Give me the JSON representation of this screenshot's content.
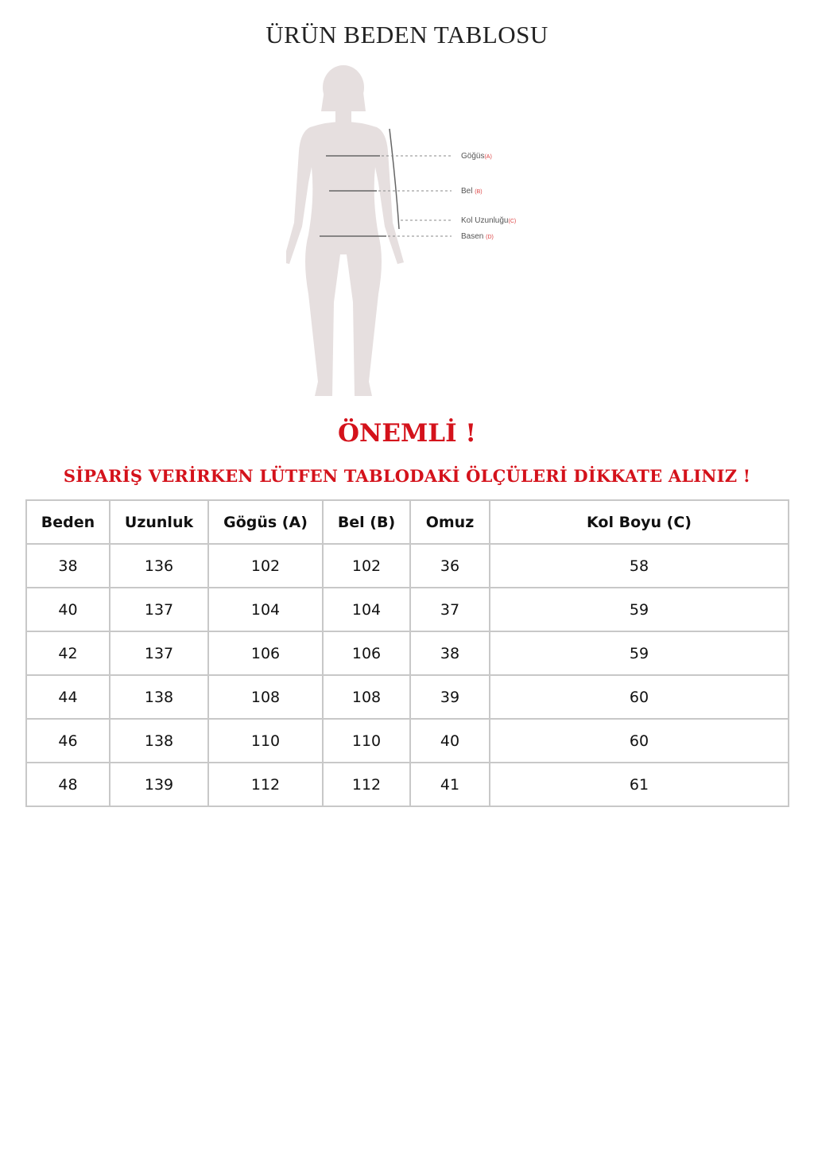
{
  "title": "ÜRÜN BEDEN TABLOSU",
  "figure": {
    "labels": [
      {
        "name": "Göğüs",
        "code": "(A)"
      },
      {
        "name": "Bel",
        "code": "(B)"
      },
      {
        "name": "Kol Uzunluğu",
        "code": "(C)"
      },
      {
        "name": "Basen",
        "code": "(D)"
      }
    ]
  },
  "notice": {
    "heading": "ÖNEMLİ !",
    "message": "SİPARİŞ VERİRKEN LÜTFEN TABLODAKİ ÖLÇÜLERİ DİKKATE ALINIZ !",
    "color": "#d4121b"
  },
  "table": {
    "headers": [
      "Beden",
      "Uzunluk",
      "Gögüs (A)",
      "Bel (B)",
      "Omuz",
      "Kol Boyu (C)"
    ],
    "rows": [
      [
        "38",
        "136",
        "102",
        "102",
        "36",
        "58"
      ],
      [
        "40",
        "137",
        "104",
        "104",
        "37",
        "59"
      ],
      [
        "42",
        "137",
        "106",
        "106",
        "38",
        "59"
      ],
      [
        "44",
        "138",
        "108",
        "108",
        "39",
        "60"
      ],
      [
        "46",
        "138",
        "110",
        "110",
        "40",
        "60"
      ],
      [
        "48",
        "139",
        "112",
        "112",
        "41",
        "61"
      ]
    ]
  }
}
